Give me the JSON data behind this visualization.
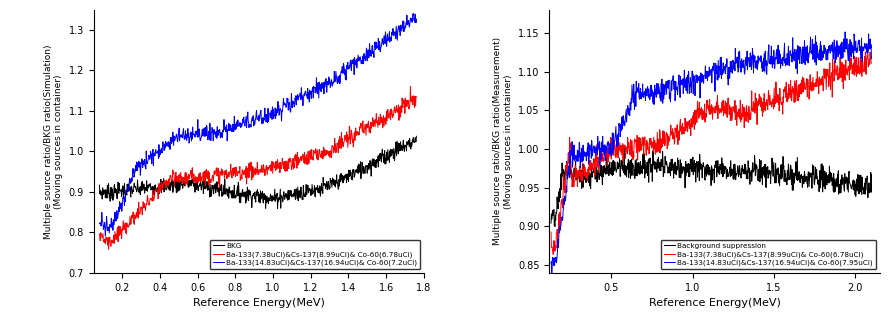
{
  "left": {
    "xlabel": "Reference Energy(MeV)",
    "ylabel_line1": "Multiple source ratio/BKG ratio(Simulation)",
    "ylabel_line2": "(Moving sources in container)",
    "xlim": [
      0.05,
      1.8
    ],
    "ylim": [
      0.7,
      1.35
    ],
    "xticks": [
      0.2,
      0.4,
      0.6,
      0.8,
      1.0,
      1.2,
      1.4,
      1.6,
      1.8
    ],
    "yticks": [
      0.7,
      0.8,
      0.9,
      1.0,
      1.1,
      1.2,
      1.3
    ],
    "legend": [
      "BKG",
      "Ba-133(7.38uCi)&Cs-137(8.99uCi)& Co-60(6.78uCi)",
      "Ba-133(14.83uCi)&Cs-137(16.94uCi)& Co-60(7.2uCi)"
    ],
    "colors": [
      "black",
      "red",
      "blue"
    ]
  },
  "right": {
    "xlabel": "Reference Energy(MeV)",
    "ylabel_line1": "Multiple source ratio/BKG ratio(Measurement)",
    "ylabel_line2": "(Moving sources in container)",
    "xlim": [
      0.12,
      2.15
    ],
    "ylim": [
      0.84,
      1.18
    ],
    "xticks": [
      0.5,
      1.0,
      1.5,
      2.0
    ],
    "yticks": [
      0.85,
      0.9,
      0.95,
      1.0,
      1.05,
      1.1,
      1.15
    ],
    "legend": [
      "Background suppression",
      "Ba-133(7.38uCi)&Cs-137(8.99uCi)& Co-60(6.78uCi)",
      "Ba-133(14.83uCi)&Cs-137(16.94uCi)& Co-60(7.95uCi)"
    ],
    "colors": [
      "black",
      "red",
      "blue"
    ]
  }
}
